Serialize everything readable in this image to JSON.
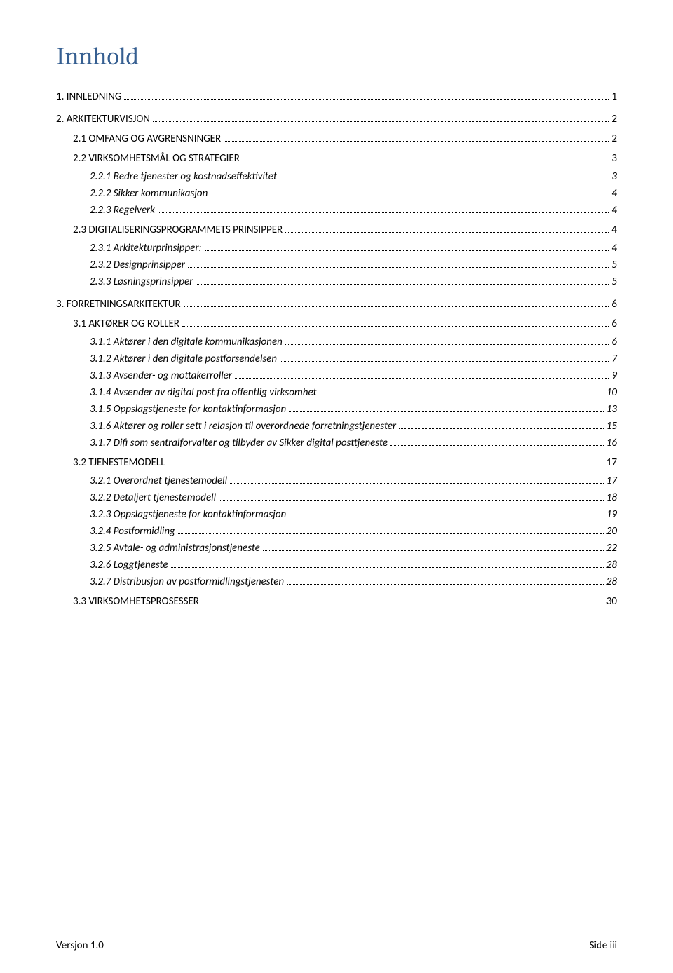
{
  "title": "Innhold",
  "toc": [
    {
      "level": 1,
      "num": "1.",
      "label": "INNLEDNING",
      "page": "1"
    },
    {
      "level": 1,
      "num": "2.",
      "label": "ARKITEKTURVISJON",
      "page": "2"
    },
    {
      "level": 2,
      "num": "2.1",
      "label": "OMFANG OG AVGRENSNINGER",
      "page": "2"
    },
    {
      "level": 2,
      "num": "2.2",
      "label": "VIRKSOMHETSMÅL OG STRATEGIER",
      "page": "3"
    },
    {
      "level": 3,
      "num": "2.2.1",
      "label": "Bedre tjenester og kostnadseffektivitet",
      "page": "3"
    },
    {
      "level": 3,
      "num": "2.2.2",
      "label": "Sikker kommunikasjon",
      "page": "4"
    },
    {
      "level": 3,
      "num": "2.2.3",
      "label": "Regelverk",
      "page": "4"
    },
    {
      "level": 2,
      "num": "2.3",
      "label": "DIGITALISERINGSPROGRAMMETS PRINSIPPER",
      "page": "4"
    },
    {
      "level": 3,
      "num": "2.3.1",
      "label": "Arkitekturprinsipper:",
      "page": "4"
    },
    {
      "level": 3,
      "num": "2.3.2",
      "label": "Designprinsipper",
      "page": "5"
    },
    {
      "level": 3,
      "num": "2.3.3",
      "label": "Løsningsprinsipper",
      "page": "5"
    },
    {
      "level": 1,
      "num": "3.",
      "label": "FORRETNINGSARKITEKTUR",
      "page": "6"
    },
    {
      "level": 2,
      "num": "3.1",
      "label": "AKTØRER OG ROLLER",
      "page": "6"
    },
    {
      "level": 3,
      "num": "3.1.1",
      "label": "Aktører i den digitale kommunikasjonen",
      "page": "6"
    },
    {
      "level": 3,
      "num": "3.1.2",
      "label": "Aktører i den digitale postforsendelsen",
      "page": "7"
    },
    {
      "level": 3,
      "num": "3.1.3",
      "label": "Avsender- og mottakerroller",
      "page": "9"
    },
    {
      "level": 3,
      "num": "3.1.4",
      "label": "Avsender av digital post fra offentlig virksomhet",
      "page": "10"
    },
    {
      "level": 3,
      "num": "3.1.5",
      "label": "Oppslagstjeneste for kontaktinformasjon",
      "page": "13"
    },
    {
      "level": 3,
      "num": "3.1.6",
      "label": "Aktører og roller sett i relasjon til overordnede forretningstjenester",
      "page": "15"
    },
    {
      "level": 3,
      "num": "3.1.7",
      "label": "Difi som sentralforvalter og tilbyder av Sikker digital posttjeneste",
      "page": "16"
    },
    {
      "level": 2,
      "num": "3.2",
      "label": "TJENESTEMODELL",
      "page": "17"
    },
    {
      "level": 3,
      "num": "3.2.1",
      "label": "Overordnet tjenestemodell",
      "page": "17"
    },
    {
      "level": 3,
      "num": "3.2.2",
      "label": "Detaljert tjenestemodell",
      "page": "18"
    },
    {
      "level": 3,
      "num": "3.2.3",
      "label": "Oppslagstjeneste for kontaktinformasjon",
      "page": "19"
    },
    {
      "level": 3,
      "num": "3.2.4",
      "label": "Postformidling",
      "page": "20"
    },
    {
      "level": 3,
      "num": "3.2.5",
      "label": "Avtale- og administrasjonstjeneste",
      "page": "22"
    },
    {
      "level": 3,
      "num": "3.2.6",
      "label": "Loggtjeneste",
      "page": "28"
    },
    {
      "level": 3,
      "num": "3.2.7",
      "label": "Distribusjon av postformidlingstjenesten",
      "page": "28"
    },
    {
      "level": 2,
      "num": "3.3",
      "label": "VIRKSOMHETSPROSESSER",
      "page": "30"
    }
  ],
  "footer": {
    "left_prefix": "Versjon ",
    "version": "1.0",
    "right_prefix": "Side ",
    "page_label": "iii"
  }
}
